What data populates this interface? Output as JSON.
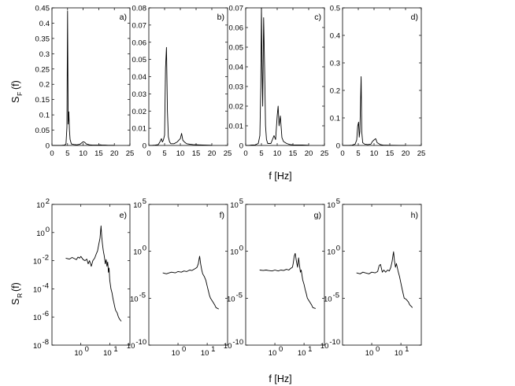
{
  "figure": {
    "top_xlabel": "f [Hz]",
    "bottom_xlabel": "f [Hz]",
    "top_ylabel_main": "S",
    "top_ylabel_sub": "F",
    "top_ylabel_arg": "(f)",
    "bottom_ylabel_main": "S",
    "bottom_ylabel_sub": "R",
    "bottom_ylabel_arg": "(f)"
  },
  "chart_data": [
    {
      "type": "line",
      "panel": "a)",
      "scale": "linear",
      "xlim": [
        0,
        25
      ],
      "ylim": [
        0,
        0.45
      ],
      "xticks": [
        "0",
        "5",
        "10",
        "15",
        "20",
        "25"
      ],
      "yticks": [
        "0",
        "0.05",
        "0.1",
        "0.15",
        "0.2",
        "0.25",
        "0.3",
        "0.35",
        "0.4",
        "0.45"
      ],
      "series": [
        {
          "x": [
            0.3,
            1,
            2,
            3,
            4,
            4.5,
            4.8,
            5.0,
            5.2,
            5.4,
            5.6,
            5.8,
            6.2,
            7,
            8,
            9,
            9.5,
            10,
            10.5,
            11,
            12,
            13,
            14,
            15,
            15.5,
            16,
            17,
            18,
            19,
            20
          ],
          "y": [
            0,
            0,
            0,
            0,
            0.001,
            0.005,
            0.06,
            0.44,
            0.07,
            0.11,
            0.05,
            0.02,
            0.005,
            0.003,
            0.002,
            0.004,
            0.008,
            0.012,
            0.01,
            0.005,
            0.002,
            0.001,
            0.001,
            0.001,
            0.002,
            0.001,
            0.001,
            0.0005,
            0.0005,
            0.0005
          ]
        }
      ]
    },
    {
      "type": "line",
      "panel": "b)",
      "scale": "linear",
      "xlim": [
        0,
        25
      ],
      "ylim": [
        0,
        0.08
      ],
      "xticks": [
        "0",
        "5",
        "10",
        "15",
        "20",
        "25"
      ],
      "yticks": [
        "0",
        "0.01",
        "0.02",
        "0.03",
        "0.04",
        "0.05",
        "0.06",
        "0.07",
        "0.08"
      ],
      "series": [
        {
          "x": [
            0.3,
            1,
            2,
            3,
            3.5,
            4,
            4.3,
            4.6,
            5.0,
            5.3,
            5.6,
            5.9,
            6.2,
            6.6,
            7,
            8,
            9,
            9.5,
            10,
            10.4,
            10.8,
            11.3,
            12,
            13,
            14,
            15,
            16,
            18,
            20
          ],
          "y": [
            0,
            0,
            0.0002,
            0.0005,
            0.002,
            0.004,
            0.002,
            0.003,
            0.006,
            0.045,
            0.057,
            0.02,
            0.005,
            0.002,
            0.001,
            0.001,
            0.002,
            0.003,
            0.004,
            0.007,
            0.003,
            0.002,
            0.001,
            0.0007,
            0.0005,
            0.0004,
            0.0003,
            0.0002,
            0.0001
          ]
        }
      ]
    },
    {
      "type": "line",
      "panel": "c)",
      "scale": "linear",
      "xlim": [
        0,
        25
      ],
      "ylim": [
        0,
        0.07
      ],
      "xticks": [
        "0",
        "5",
        "10",
        "15",
        "20",
        "25"
      ],
      "yticks": [
        "0",
        "0.01",
        "0.02",
        "0.03",
        "0.04",
        "0.05",
        "0.06",
        "0.07"
      ],
      "series": [
        {
          "x": [
            0.3,
            1,
            2,
            3,
            4,
            4.5,
            4.8,
            5.0,
            5.2,
            5.4,
            5.7,
            6.0,
            6.3,
            6.6,
            7,
            8,
            8.5,
            9,
            9.5,
            10.0,
            10.3,
            10.6,
            11,
            11.5,
            12,
            13,
            14,
            15,
            16,
            18,
            20
          ],
          "y": [
            0,
            0,
            0.0002,
            0.0003,
            0.001,
            0.005,
            0.03,
            0.07,
            0.04,
            0.02,
            0.065,
            0.04,
            0.01,
            0.003,
            0.001,
            0.001,
            0.003,
            0.005,
            0.003,
            0.015,
            0.02,
            0.01,
            0.015,
            0.004,
            0.002,
            0.001,
            0.0005,
            0.0003,
            0.0002,
            0.0002,
            0.0001
          ]
        }
      ]
    },
    {
      "type": "line",
      "panel": "d)",
      "scale": "linear",
      "xlim": [
        0,
        25
      ],
      "ylim": [
        0,
        0.5
      ],
      "xticks": [
        "0",
        "5",
        "10",
        "15",
        "20",
        "25"
      ],
      "yticks": [
        "0",
        "0.1",
        "0.2",
        "0.3",
        "0.4",
        "0.5"
      ],
      "series": [
        {
          "x": [
            0.3,
            1,
            2,
            3,
            4,
            4.5,
            4.8,
            5.1,
            5.3,
            5.5,
            5.7,
            5.9,
            6.1,
            6.4,
            7,
            8,
            9,
            9.5,
            10,
            10.5,
            11,
            12,
            13,
            14,
            15,
            16,
            18,
            20
          ],
          "y": [
            0,
            0,
            0,
            0.001,
            0.005,
            0.02,
            0.07,
            0.085,
            0.03,
            0.05,
            0.15,
            0.25,
            0.05,
            0.01,
            0.005,
            0.003,
            0.005,
            0.015,
            0.02,
            0.025,
            0.01,
            0.003,
            0.001,
            0.001,
            0.0005,
            0.0005,
            0.0003,
            0.0002
          ]
        }
      ]
    },
    {
      "type": "line",
      "panel": "e)",
      "scale": "loglog",
      "xlim": [
        0.1,
        50
      ],
      "ylim": [
        1e-08,
        100
      ],
      "xticks": [
        "10",
        "10"
      ],
      "xtick_exp": [
        "0",
        "1"
      ],
      "xtick_vals": [
        1,
        10
      ],
      "yticks": [
        "10",
        "10",
        "10",
        "10",
        "10",
        "10"
      ],
      "ytick_exp": [
        "-8",
        "-6",
        "-4",
        "-2",
        "0",
        "2"
      ],
      "ytick_vals": [
        1e-08,
        1e-06,
        0.0001,
        0.01,
        1,
        100
      ],
      "series": [
        {
          "x": [
            0.3,
            0.4,
            0.5,
            0.6,
            0.7,
            0.8,
            0.9,
            1.0,
            1.2,
            1.4,
            1.6,
            1.8,
            2.0,
            2.3,
            2.6,
            3.0,
            3.4,
            3.8,
            4.2,
            4.6,
            5.0,
            5.3,
            5.6,
            6.0,
            6.5,
            7.0,
            7.5,
            8.0,
            8.5,
            9.0,
            9.5,
            10,
            11,
            12,
            13,
            14,
            15,
            16,
            18,
            20,
            22,
            25
          ],
          "y": [
            0.015,
            0.013,
            0.017,
            0.014,
            0.012,
            0.018,
            0.015,
            0.02,
            0.012,
            0.01,
            0.013,
            0.006,
            0.01,
            0.004,
            0.01,
            0.015,
            0.03,
            0.05,
            0.15,
            0.4,
            3,
            0.5,
            0.15,
            0.05,
            0.02,
            0.006,
            0.012,
            0.004,
            0.008,
            0.0015,
            0.003,
            0.0004,
            0.0001,
            5e-05,
            2e-05,
            1e-05,
            5e-06,
            3e-06,
            2e-06,
            1e-06,
            7e-07,
            5e-07
          ]
        }
      ]
    },
    {
      "type": "line",
      "panel": "f)",
      "scale": "loglog",
      "xlim": [
        0.1,
        50
      ],
      "ylim": [
        1e-10,
        100000
      ],
      "xticks": [
        "10",
        "10"
      ],
      "xtick_exp": [
        "0",
        "1"
      ],
      "xtick_vals": [
        1,
        10
      ],
      "yticks": [
        "10",
        "10",
        "10",
        "10"
      ],
      "ytick_exp": [
        "-10",
        "-5",
        "0",
        "5"
      ],
      "ytick_vals": [
        1e-10,
        1e-05,
        1,
        100000
      ],
      "series": [
        {
          "x": [
            0.3,
            0.4,
            0.5,
            0.6,
            0.8,
            1.0,
            1.3,
            1.6,
            2.0,
            2.5,
            3.0,
            3.5,
            4.0,
            4.5,
            5.0,
            5.2,
            5.5,
            6.0,
            6.5,
            7.0,
            8.0,
            9.0,
            10,
            11,
            12,
            13,
            15,
            18,
            20,
            25
          ],
          "y": [
            0.005,
            0.004,
            0.005,
            0.006,
            0.005,
            0.007,
            0.006,
            0.008,
            0.007,
            0.01,
            0.009,
            0.012,
            0.015,
            0.02,
            0.05,
            0.12,
            0.3,
            0.04,
            0.01,
            0.004,
            0.002,
            0.0008,
            0.0002,
            6e-05,
            2e-05,
            1e-05,
            5e-06,
            2e-06,
            1e-06,
            7e-07
          ]
        }
      ]
    },
    {
      "type": "line",
      "panel": "g)",
      "scale": "loglog",
      "xlim": [
        0.1,
        50
      ],
      "ylim": [
        1e-10,
        100000
      ],
      "xticks": [
        "10",
        "10"
      ],
      "xtick_exp": [
        "0",
        "1"
      ],
      "xtick_vals": [
        1,
        10
      ],
      "yticks": [
        "10",
        "10",
        "10",
        "10"
      ],
      "ytick_exp": [
        "-10",
        "-5",
        "0",
        "5"
      ],
      "ytick_vals": [
        1e-10,
        1e-05,
        1,
        100000
      ],
      "series": [
        {
          "x": [
            0.3,
            0.4,
            0.5,
            0.6,
            0.8,
            1.0,
            1.3,
            1.6,
            2.0,
            2.5,
            3.0,
            3.5,
            4.0,
            4.3,
            4.6,
            5.0,
            5.5,
            6.0,
            6.5,
            7.0,
            7.5,
            8.0,
            9.0,
            10,
            11,
            12,
            13,
            15,
            18,
            20,
            25
          ],
          "y": [
            0.01,
            0.009,
            0.01,
            0.009,
            0.008,
            0.01,
            0.008,
            0.01,
            0.009,
            0.012,
            0.01,
            0.015,
            0.02,
            0.06,
            0.3,
            0.6,
            0.08,
            0.02,
            0.2,
            0.03,
            0.006,
            0.01,
            0.0009,
            0.0003,
            8e-05,
            3e-05,
            1e-05,
            5e-06,
            2e-06,
            1e-06,
            8e-07
          ]
        }
      ]
    },
    {
      "type": "line",
      "panel": "h)",
      "scale": "loglog",
      "xlim": [
        0.1,
        50
      ],
      "ylim": [
        1e-10,
        100000
      ],
      "xticks": [
        "10",
        "10"
      ],
      "xtick_exp": [
        "0",
        "1"
      ],
      "xtick_vals": [
        1,
        10
      ],
      "yticks": [
        "10",
        "10",
        "10",
        "10"
      ],
      "ytick_exp": [
        "-10",
        "-5",
        "0",
        "5"
      ],
      "ytick_vals": [
        1e-10,
        1e-05,
        1,
        100000
      ],
      "series": [
        {
          "x": [
            0.3,
            0.4,
            0.5,
            0.6,
            0.8,
            1.0,
            1.3,
            1.6,
            1.8,
            2.0,
            2.3,
            2.6,
            3.0,
            3.5,
            4.0,
            4.5,
            5.0,
            5.3,
            5.6,
            6.0,
            6.5,
            7.0,
            8.0,
            9.0,
            10,
            11,
            12,
            13,
            15,
            18,
            20,
            25
          ],
          "y": [
            0.005,
            0.004,
            0.006,
            0.005,
            0.004,
            0.006,
            0.005,
            0.007,
            0.03,
            0.04,
            0.006,
            0.01,
            0.006,
            0.01,
            0.008,
            0.02,
            0.08,
            0.3,
            0.9,
            0.1,
            0.02,
            0.05,
            0.008,
            0.002,
            0.0004,
            0.0001,
            3e-05,
            1e-05,
            8e-06,
            4e-06,
            2e-06,
            1e-06
          ]
        }
      ]
    }
  ]
}
